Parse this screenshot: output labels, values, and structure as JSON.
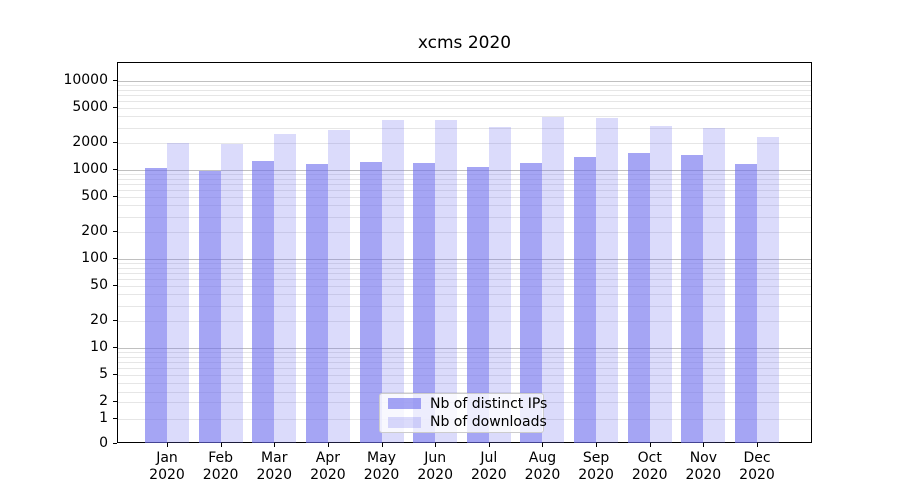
{
  "title": "xcms 2020",
  "chart_data": {
    "type": "bar",
    "title": "xcms 2020",
    "categories": [
      "Jan",
      "Feb",
      "Mar",
      "Apr",
      "May",
      "Jun",
      "Jul",
      "Aug",
      "Sep",
      "Oct",
      "Nov",
      "Dec"
    ],
    "category_year": "2020",
    "series": [
      {
        "name": "Nb of distinct IPs",
        "color": "110,110,238",
        "alpha": 0.62,
        "values": [
          1040,
          970,
          1250,
          1170,
          1220,
          1200,
          1090,
          1210,
          1400,
          1550,
          1480,
          1170
        ]
      },
      {
        "name": "Nb of downloads",
        "color": "110,110,238",
        "alpha": 0.25,
        "values": [
          2000,
          1950,
          2550,
          2850,
          3600,
          3600,
          3050,
          3950,
          3850,
          3150,
          3000,
          2350
        ]
      }
    ],
    "yscale": "symlog",
    "yticks": [
      0,
      1,
      2,
      5,
      10,
      20,
      50,
      100,
      200,
      500,
      1000,
      2000,
      5000,
      10000
    ],
    "ylim": [
      0,
      16000
    ],
    "xlabel": "",
    "ylabel": "",
    "grid": "both",
    "legend_position": "lower center"
  },
  "colors": {
    "bar_base": "#6e6eee",
    "grid_major": "#c0c0c0",
    "grid_minor": "#e6e6e6",
    "spine": "#000000",
    "background": "#ffffff",
    "legend_border": "#cccccc"
  }
}
